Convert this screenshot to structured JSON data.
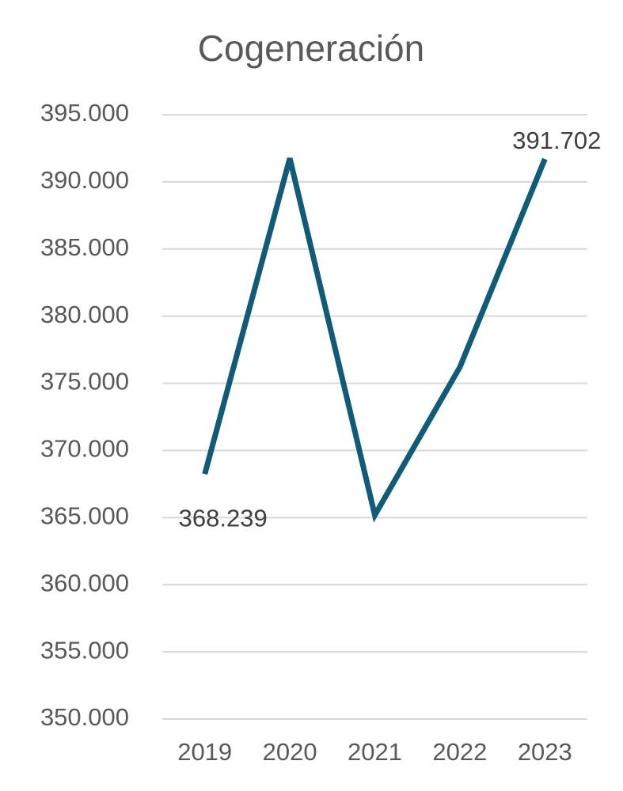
{
  "chart_data": {
    "type": "line",
    "title": "Cogeneración",
    "categories": [
      "2019",
      "2020",
      "2021",
      "2022",
      "2023"
    ],
    "series": [
      {
        "color": "#0f5b78",
        "values": [
          368239,
          391750,
          365180,
          376200,
          391702
        ],
        "value_labels": [
          "368.239",
          null,
          null,
          null,
          "391.702"
        ]
      }
    ],
    "ylim": [
      350000,
      395000
    ],
    "yticks": [
      {
        "value": 350000,
        "label": "350.000"
      },
      {
        "value": 355000,
        "label": "355.000"
      },
      {
        "value": 360000,
        "label": "360.000"
      },
      {
        "value": 365000,
        "label": "365.000"
      },
      {
        "value": 370000,
        "label": "370.000"
      },
      {
        "value": 375000,
        "label": "375.000"
      },
      {
        "value": 380000,
        "label": "380.000"
      },
      {
        "value": 385000,
        "label": "385.000"
      },
      {
        "value": 390000,
        "label": "390.000"
      },
      {
        "value": 395000,
        "label": "395.000"
      }
    ],
    "grid": true
  }
}
